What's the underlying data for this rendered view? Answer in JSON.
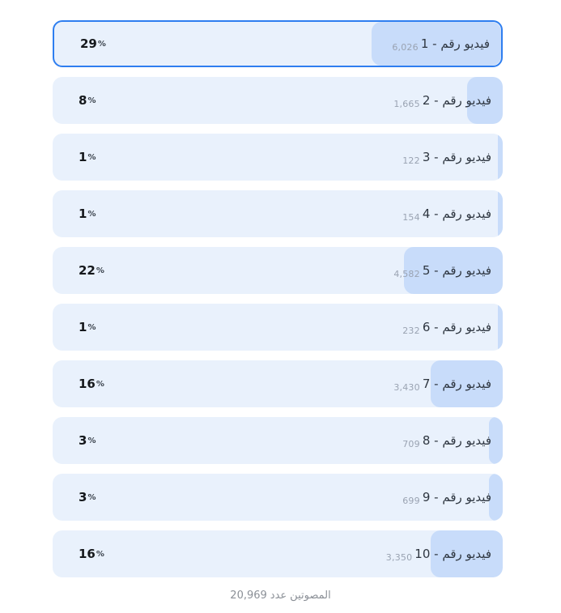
{
  "poll": {
    "percent_sign": "%",
    "options": [
      {
        "label": "فيديو رقم - 1",
        "count": "6,026",
        "percent": 29,
        "selected": true
      },
      {
        "label": "فيديو رقم - 2",
        "count": "1,665",
        "percent": 8,
        "selected": false
      },
      {
        "label": "فيديو رقم - 3",
        "count": "122",
        "percent": 1,
        "selected": false
      },
      {
        "label": "فيديو رقم - 4",
        "count": "154",
        "percent": 1,
        "selected": false
      },
      {
        "label": "فيديو رقم - 5",
        "count": "4,582",
        "percent": 22,
        "selected": false
      },
      {
        "label": "فيديو رقم - 6",
        "count": "232",
        "percent": 1,
        "selected": false
      },
      {
        "label": "فيديو رقم - 7",
        "count": "3,430",
        "percent": 16,
        "selected": false
      },
      {
        "label": "فيديو رقم - 8",
        "count": "709",
        "percent": 3,
        "selected": false
      },
      {
        "label": "فيديو رقم - 9",
        "count": "699",
        "percent": 3,
        "selected": false
      },
      {
        "label": "فيديو رقم - 10",
        "count": "3,350",
        "percent": 16,
        "selected": false
      }
    ],
    "footer": {
      "total_votes": "20,969",
      "label_word_1": "عدد",
      "label_word_2": "المصوتين",
      "text": "20,969 عدد المصوتين"
    },
    "colors": {
      "accent_border": "#2e7ef0",
      "row_background": "#e9f1fc",
      "bar_fill": "#c8dcfa"
    }
  },
  "chart_data": {
    "type": "bar",
    "orientation": "horizontal-rtl",
    "title": "",
    "categories": [
      "فيديو رقم - 1",
      "فيديو رقم - 2",
      "فيديو رقم - 3",
      "فيديو رقم - 4",
      "فيديو رقم - 5",
      "فيديو رقم - 6",
      "فيديو رقم - 7",
      "فيديو رقم - 8",
      "فيديو رقم - 9",
      "فيديو رقم - 10"
    ],
    "series": [
      {
        "name": "votes",
        "values": [
          6026,
          1665,
          122,
          154,
          4582,
          232,
          3430,
          709,
          699,
          3350
        ]
      },
      {
        "name": "percent",
        "values": [
          29,
          8,
          1,
          1,
          22,
          1,
          16,
          3,
          3,
          16
        ]
      }
    ],
    "total_votes": 20969,
    "selected_index": 0,
    "footer_label": "عدد المصوتين",
    "xlim_percent": [
      0,
      100
    ],
    "grid": false,
    "legend": false
  }
}
